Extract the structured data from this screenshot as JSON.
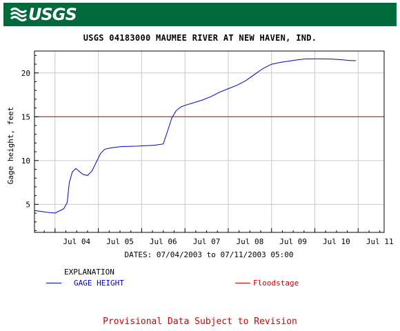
{
  "header": {
    "logo_text": "USGS",
    "logo_icon": "usgs-wave-icon",
    "banner_color": "#006a3c"
  },
  "chart_data": {
    "type": "line",
    "title": "USGS 04183000 MAUMEE RIVER AT NEW HAVEN, IND.",
    "ylabel": "Gage height, feet",
    "xlabel": "DATES: 07/04/2003 to 07/11/2003 05:00",
    "x_unit": "days from start of 07/03/2003",
    "xlim": [
      0.525,
      8.6
    ],
    "ylim": [
      1.8,
      22.5
    ],
    "yticks": [
      5,
      10,
      15,
      20
    ],
    "xtick_positions": [
      1,
      2,
      3,
      4,
      5,
      6,
      7,
      8
    ],
    "xtick_labels": [
      "Jul 04",
      "Jul 05",
      "Jul 06",
      "Jul 07",
      "Jul 08",
      "Jul 09",
      "Jul 10",
      "Jul 11"
    ],
    "grid": true,
    "series": [
      {
        "name": "GAGE HEIGHT",
        "color": "#0000cc",
        "x": [
          0.525,
          0.8,
          1.0,
          1.2,
          1.28,
          1.33,
          1.4,
          1.48,
          1.55,
          1.65,
          1.75,
          1.85,
          1.95,
          2.05,
          2.15,
          2.3,
          2.45,
          2.55,
          2.7,
          2.9,
          3.1,
          3.3,
          3.5,
          3.6,
          3.7,
          3.8,
          3.9,
          4.0,
          4.2,
          4.4,
          4.6,
          4.8,
          5.0,
          5.2,
          5.4,
          5.6,
          5.8,
          6.0,
          6.2,
          6.4,
          6.6,
          6.8,
          7.0,
          7.2,
          7.4,
          7.6,
          7.8,
          7.95
        ],
        "y": [
          4.3,
          4.1,
          4.0,
          4.5,
          5.2,
          7.5,
          8.7,
          9.1,
          8.8,
          8.4,
          8.3,
          8.8,
          9.8,
          10.8,
          11.3,
          11.45,
          11.55,
          11.6,
          11.62,
          11.65,
          11.7,
          11.75,
          11.9,
          13.4,
          14.9,
          15.7,
          16.1,
          16.3,
          16.6,
          16.9,
          17.3,
          17.8,
          18.2,
          18.6,
          19.1,
          19.8,
          20.5,
          21.0,
          21.2,
          21.35,
          21.5,
          21.6,
          21.6,
          21.6,
          21.58,
          21.52,
          21.42,
          21.4
        ]
      },
      {
        "name": "Floodstage",
        "color": "#cc0000",
        "x": [
          0.525,
          8.6
        ],
        "y": [
          15,
          15
        ]
      }
    ]
  },
  "explanation": {
    "heading": "EXPLANATION",
    "gage_label": "GAGE HEIGHT",
    "flood_label": "Floodstage",
    "gage_color": "#0000cc",
    "flood_color": "#cc0000"
  },
  "footer": {
    "provisional": "Provisional Data Subject to Revision"
  }
}
